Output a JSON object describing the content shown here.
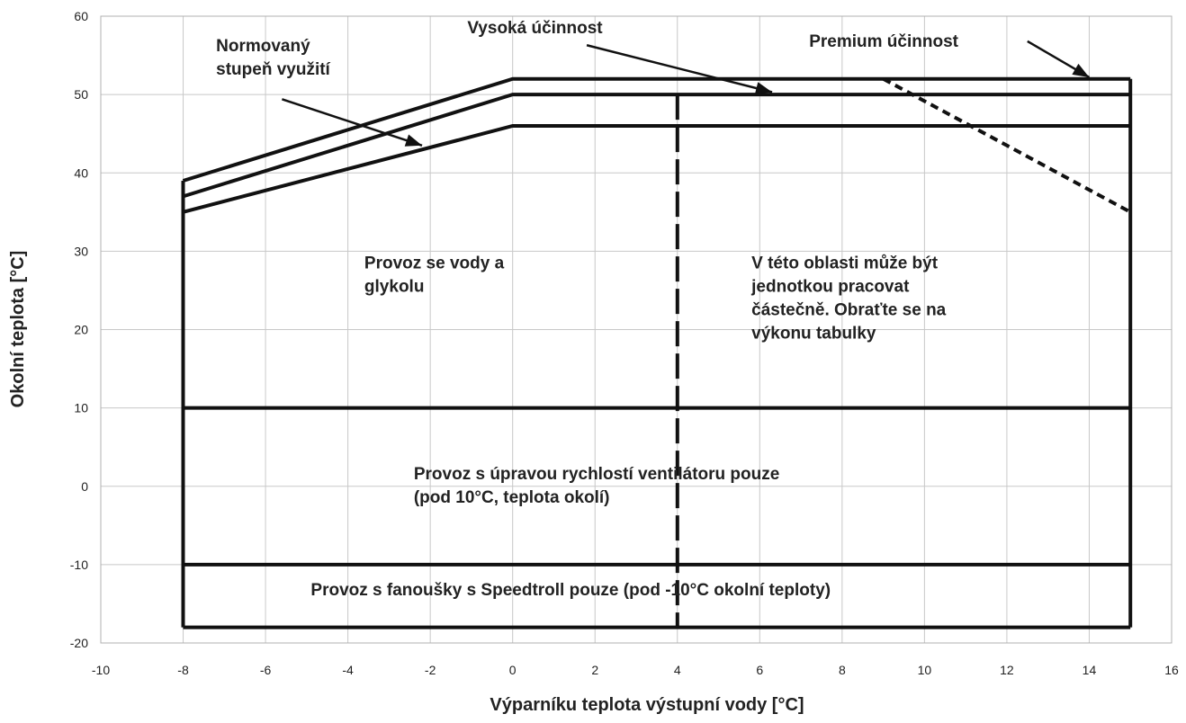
{
  "chart_data": {
    "type": "line",
    "title": "",
    "xlabel": "Výparníku teplota výstupní vody [°C]",
    "ylabel": "Okolní teplota [°C]",
    "xlim": [
      -10,
      16
    ],
    "ylim": [
      -20,
      60
    ],
    "xticks": [
      -10,
      -8,
      -6,
      -4,
      -2,
      0,
      2,
      4,
      6,
      8,
      10,
      12,
      14,
      16
    ],
    "yticks": [
      -20,
      -10,
      0,
      10,
      20,
      30,
      40,
      50,
      60
    ],
    "xtick_labels": [
      "-10",
      "-8",
      "-6",
      "-4",
      "-2",
      "0",
      "2",
      "4",
      "6",
      "8",
      "10",
      "12",
      "14",
      "16"
    ],
    "ytick_labels": [
      "-20",
      "-10",
      "0",
      "10",
      "20",
      "30",
      "40",
      "50",
      "60"
    ],
    "grid": true,
    "series": [
      {
        "style": "solid",
        "x": [
          -8,
          0,
          15
        ],
        "y": [
          39,
          52,
          52
        ]
      },
      {
        "style": "solid",
        "x": [
          -8,
          0,
          15
        ],
        "y": [
          37,
          50,
          50
        ]
      },
      {
        "style": "solid",
        "x": [
          -8,
          0,
          15
        ],
        "y": [
          35,
          46,
          46
        ]
      },
      {
        "style": "dashed",
        "x": [
          9,
          15
        ],
        "y": [
          52,
          35
        ]
      },
      {
        "style": "dashed",
        "x": [
          4,
          4
        ],
        "y": [
          50,
          -18
        ]
      },
      {
        "style": "solid",
        "x": [
          -8,
          -8
        ],
        "y": [
          39,
          -18
        ]
      },
      {
        "style": "solid",
        "x": [
          15,
          15
        ],
        "y": [
          52,
          -18
        ]
      },
      {
        "style": "solid",
        "x": [
          -8,
          15
        ],
        "y": [
          -18,
          -18
        ]
      },
      {
        "style": "solid",
        "x": [
          -8,
          15
        ],
        "y": [
          -10,
          -10
        ]
      },
      {
        "style": "solid",
        "x": [
          -8,
          15
        ],
        "y": [
          10,
          10
        ]
      }
    ],
    "annotations": [
      {
        "lines": [
          "Normovaný",
          "stupeň využití"
        ],
        "x": -7.2,
        "y": 55.5,
        "arrow_to": [
          -2.2,
          43.5
        ]
      },
      {
        "lines": [
          "Vysoká účinnost"
        ],
        "x": -1.1,
        "y": 57.8,
        "arrow_to": [
          6.3,
          50.3
        ]
      },
      {
        "lines": [
          "Premium účinnost"
        ],
        "x": 7.2,
        "y": 56.1,
        "arrow_to": [
          14.0,
          52.2
        ]
      },
      {
        "lines": [
          "Provoz se vody a",
          "glykolu"
        ],
        "x": -3.6,
        "y": 27.8
      },
      {
        "lines": [
          "V této oblasti může být",
          "jednotkou pracovat",
          "částečně. Obraťte se na",
          "výkonu tabulky"
        ],
        "x": 5.8,
        "y": 27.8
      },
      {
        "lines": [
          "Provoz s úpravou rychlostí ventilátoru pouze",
          "(pod 10°C, teplota okolí)"
        ],
        "x": -2.4,
        "y": 0.9
      },
      {
        "lines": [
          "Provoz s fanoušky s Speedtroll pouze (pod -10°C okolní teploty)"
        ],
        "x": -4.9,
        "y": -13.9
      }
    ]
  }
}
